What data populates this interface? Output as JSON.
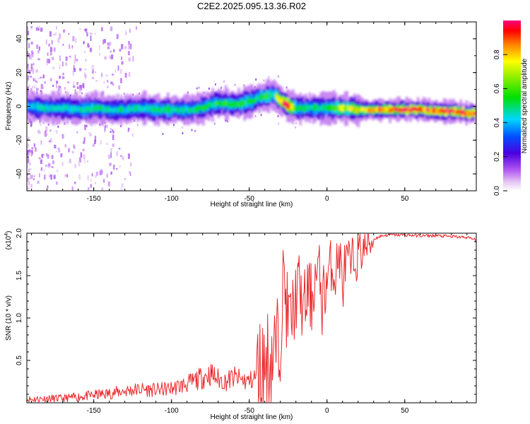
{
  "title": "C2E2.2025.095.13.36.R02",
  "colors": {
    "snr_line": "#e8282b",
    "background": "#ffffff",
    "axis": "#000000"
  },
  "chart_data": [
    {
      "type": "heatmap",
      "xlabel": "Height of straight line (km)",
      "ylabel": "Frequency (Hz)",
      "xlim": [
        -193,
        96
      ],
      "ylim": [
        -50,
        50
      ],
      "xticks": [
        -150,
        -100,
        -50,
        0,
        50
      ],
      "xtick_labels": [
        "-150",
        "-100",
        "-50",
        "0",
        "50"
      ],
      "yticks": [
        -40,
        -20,
        0,
        20,
        40
      ],
      "ytick_labels": [
        "-40",
        "-20",
        "0",
        "20",
        "40"
      ],
      "grid": false,
      "ridge": {
        "x": [
          -193,
          -180,
          -170,
          -160,
          -150,
          -140,
          -130,
          -120,
          -110,
          -100,
          -90,
          -80,
          -75,
          -70,
          -60,
          -50,
          -45,
          -40,
          -35,
          -30,
          -25,
          -20,
          -10,
          0,
          10,
          20,
          30,
          40,
          50,
          60,
          70,
          80,
          90,
          96
        ],
        "freq": [
          0,
          -1,
          -1,
          -2,
          -1,
          -2,
          -2,
          -1,
          -2,
          -2,
          -2,
          -1,
          1,
          2,
          1,
          3,
          5,
          6,
          7,
          3,
          0,
          -1,
          -1,
          -1,
          -1,
          -2,
          -2,
          -2,
          -2,
          -2,
          -3,
          -3,
          -4,
          -4
        ],
        "amplitude": [
          0.4,
          0.45,
          0.45,
          0.45,
          0.5,
          0.45,
          0.45,
          0.45,
          0.5,
          0.5,
          0.45,
          0.5,
          0.5,
          0.55,
          0.55,
          0.5,
          0.5,
          0.55,
          0.5,
          0.85,
          0.95,
          0.5,
          0.5,
          0.5,
          0.7,
          0.75,
          0.85,
          0.9,
          0.95,
          0.9,
          0.9,
          0.95,
          0.95,
          0.9
        ]
      },
      "colorbar": {
        "label": "Normalized spectral amplitude",
        "ticks": [
          0.0,
          0.2,
          0.4,
          0.6,
          0.8
        ],
        "tick_labels": [
          "0.0",
          "0.2",
          "0.4",
          "0.6",
          "0.8"
        ],
        "range": [
          0,
          1
        ],
        "colormap": "rainbow (white-violet-blue-cyan-green-yellow-red)"
      }
    },
    {
      "type": "line",
      "xlabel": "Height of straight line (km)",
      "ylabel": "SNR (10 * v/v)",
      "scale_label": "(x10",
      "scale_exponent": "4",
      "scale_close": ")",
      "xlim": [
        -193,
        96
      ],
      "ylim": [
        0,
        2.0
      ],
      "xticks": [
        -150,
        -100,
        -50,
        0,
        50
      ],
      "xtick_labels": [
        "-150",
        "-100",
        "-50",
        "0",
        "50"
      ],
      "yticks": [
        0.5,
        1.0,
        1.5,
        2.0
      ],
      "ytick_labels": [
        "0.5",
        "1.0",
        "1.5",
        "2.0"
      ],
      "grid": false,
      "series": [
        {
          "x": [
            -193,
            -180,
            -170,
            -160,
            -150,
            -140,
            -130,
            -120,
            -110,
            -100,
            -90,
            -85,
            -80,
            -75,
            -70,
            -65,
            -60,
            -55,
            -50,
            -45,
            -42,
            -40,
            -38,
            -35,
            -33,
            -30,
            -28,
            -26,
            -24,
            -22,
            -20,
            -18,
            -15,
            -12,
            -10,
            -8,
            -5,
            -3,
            0,
            3,
            5,
            8,
            10,
            12,
            15,
            18,
            20,
            25,
            30,
            35,
            40,
            50,
            60,
            70,
            80,
            90,
            96
          ],
          "y": [
            0.04,
            0.05,
            0.05,
            0.07,
            0.09,
            0.11,
            0.14,
            0.16,
            0.15,
            0.17,
            0.22,
            0.26,
            0.3,
            0.34,
            0.28,
            0.25,
            0.3,
            0.27,
            0.25,
            0.32,
            0.38,
            0.42,
            0.5,
            0.55,
            0.62,
            0.8,
            1.6,
            1.1,
            0.95,
            1.05,
            1.25,
            1.4,
            1.05,
            1.35,
            1.2,
            1.45,
            1.55,
            1.2,
            1.45,
            1.65,
            1.5,
            1.75,
            1.4,
            1.65,
            1.6,
            1.7,
            1.75,
            1.85,
            1.93,
            1.97,
            1.98,
            1.98,
            1.97,
            1.97,
            1.96,
            1.95,
            1.92
          ]
        }
      ]
    }
  ]
}
